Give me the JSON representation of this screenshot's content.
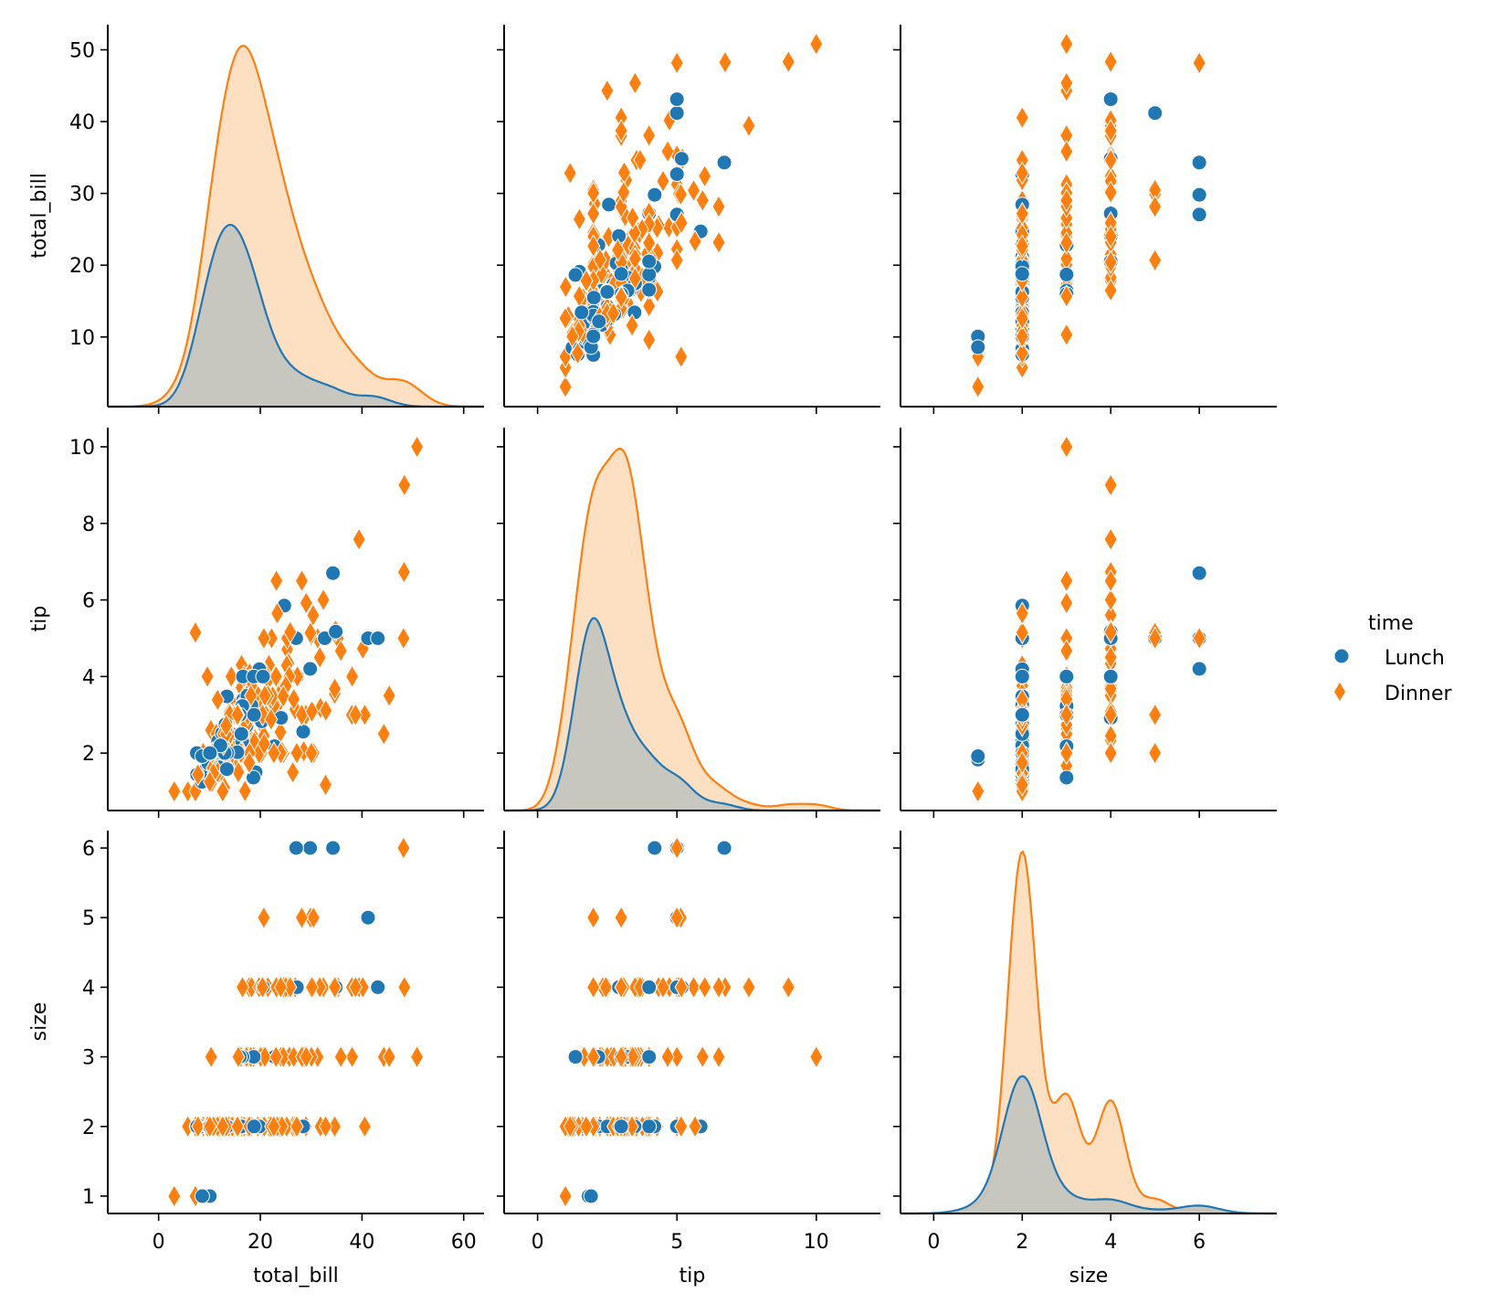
{
  "chart_data": {
    "type": "scatter",
    "title": "",
    "variables": [
      "total_bill",
      "tip",
      "size"
    ],
    "hue": "time",
    "legend": {
      "title": "time",
      "placement": "right",
      "entries": [
        {
          "label": "Lunch",
          "color": "#1f77b4",
          "marker": "circle"
        },
        {
          "label": "Dinner",
          "color": "#ff7f0e",
          "marker": "diamond"
        }
      ]
    },
    "axes": {
      "total_bill": {
        "label": "total_bill",
        "lim": [
          -10,
          64
        ],
        "ticks": [
          0,
          20,
          40,
          60
        ],
        "ticks_y": [
          10,
          20,
          30,
          40,
          50
        ],
        "lim_y": [
          0.3,
          53.5
        ]
      },
      "tip": {
        "label": "tip",
        "lim": [
          -1.2,
          12.3
        ],
        "ticks": [
          0,
          5,
          10
        ],
        "ticks_y": [
          2,
          4,
          6,
          8,
          10
        ],
        "lim_y": [
          0.5,
          10.5
        ]
      },
      "size": {
        "label": "size",
        "lim": [
          -0.75,
          7.75
        ],
        "ticks": [
          0,
          2,
          4,
          6
        ],
        "ticks_y": [
          1,
          2,
          3,
          4,
          5,
          6
        ],
        "lim_y": [
          0.75,
          6.25
        ]
      }
    },
    "grid": false,
    "diag_kind": "kde",
    "colors": {
      "Lunch": "#1f77b4",
      "Dinner": "#ff7f0e",
      "Lunch_fill": "#c4c4bf",
      "Dinner_fill": "#fddfc2"
    },
    "columns": [
      "total_bill",
      "tip",
      "size",
      "time"
    ],
    "rows": [
      [
        16.99,
        1.01,
        2,
        "Dinner"
      ],
      [
        10.34,
        1.66,
        3,
        "Dinner"
      ],
      [
        21.01,
        3.5,
        3,
        "Dinner"
      ],
      [
        23.68,
        3.31,
        2,
        "Dinner"
      ],
      [
        24.59,
        3.61,
        4,
        "Dinner"
      ],
      [
        25.29,
        4.71,
        4,
        "Dinner"
      ],
      [
        8.77,
        2.0,
        2,
        "Dinner"
      ],
      [
        26.88,
        3.12,
        4,
        "Dinner"
      ],
      [
        15.04,
        1.96,
        2,
        "Dinner"
      ],
      [
        14.78,
        3.23,
        2,
        "Dinner"
      ],
      [
        10.27,
        1.71,
        2,
        "Dinner"
      ],
      [
        35.26,
        5.0,
        4,
        "Dinner"
      ],
      [
        15.42,
        1.57,
        2,
        "Dinner"
      ],
      [
        18.43,
        3.0,
        4,
        "Dinner"
      ],
      [
        14.83,
        3.02,
        2,
        "Dinner"
      ],
      [
        21.58,
        3.92,
        2,
        "Dinner"
      ],
      [
        10.33,
        1.67,
        3,
        "Dinner"
      ],
      [
        16.29,
        3.71,
        3,
        "Dinner"
      ],
      [
        16.97,
        3.5,
        3,
        "Dinner"
      ],
      [
        20.65,
        3.35,
        3,
        "Dinner"
      ],
      [
        17.92,
        4.08,
        2,
        "Dinner"
      ],
      [
        20.29,
        2.75,
        2,
        "Dinner"
      ],
      [
        15.77,
        2.23,
        2,
        "Dinner"
      ],
      [
        39.42,
        7.58,
        4,
        "Dinner"
      ],
      [
        19.82,
        3.18,
        2,
        "Dinner"
      ],
      [
        17.81,
        2.34,
        4,
        "Dinner"
      ],
      [
        13.37,
        2.0,
        2,
        "Dinner"
      ],
      [
        12.69,
        2.0,
        2,
        "Dinner"
      ],
      [
        21.7,
        4.3,
        2,
        "Dinner"
      ],
      [
        19.65,
        3.0,
        2,
        "Dinner"
      ],
      [
        9.55,
        1.45,
        2,
        "Dinner"
      ],
      [
        18.35,
        2.5,
        4,
        "Dinner"
      ],
      [
        15.06,
        3.0,
        2,
        "Dinner"
      ],
      [
        20.69,
        2.45,
        4,
        "Dinner"
      ],
      [
        17.78,
        3.27,
        2,
        "Dinner"
      ],
      [
        24.06,
        3.6,
        3,
        "Dinner"
      ],
      [
        16.31,
        2.0,
        3,
        "Dinner"
      ],
      [
        16.93,
        3.07,
        3,
        "Dinner"
      ],
      [
        18.69,
        2.31,
        3,
        "Dinner"
      ],
      [
        31.27,
        5.0,
        3,
        "Dinner"
      ],
      [
        16.04,
        2.24,
        3,
        "Dinner"
      ],
      [
        17.46,
        2.54,
        2,
        "Dinner"
      ],
      [
        13.94,
        3.06,
        2,
        "Dinner"
      ],
      [
        9.68,
        1.32,
        2,
        "Dinner"
      ],
      [
        30.4,
        5.6,
        4,
        "Dinner"
      ],
      [
        18.29,
        3.0,
        2,
        "Dinner"
      ],
      [
        22.23,
        5.0,
        2,
        "Dinner"
      ],
      [
        32.4,
        6.0,
        4,
        "Dinner"
      ],
      [
        28.55,
        2.05,
        3,
        "Dinner"
      ],
      [
        18.04,
        3.0,
        2,
        "Dinner"
      ],
      [
        12.54,
        2.5,
        2,
        "Dinner"
      ],
      [
        10.29,
        2.6,
        2,
        "Dinner"
      ],
      [
        34.81,
        5.2,
        4,
        "Dinner"
      ],
      [
        9.94,
        1.56,
        2,
        "Dinner"
      ],
      [
        25.56,
        4.34,
        4,
        "Dinner"
      ],
      [
        19.49,
        3.51,
        2,
        "Dinner"
      ],
      [
        38.01,
        3.0,
        4,
        "Dinner"
      ],
      [
        26.41,
        1.5,
        2,
        "Dinner"
      ],
      [
        11.24,
        1.76,
        2,
        "Dinner"
      ],
      [
        48.27,
        6.73,
        4,
        "Dinner"
      ],
      [
        20.29,
        3.21,
        2,
        "Dinner"
      ],
      [
        13.81,
        2.0,
        2,
        "Dinner"
      ],
      [
        11.02,
        1.98,
        2,
        "Dinner"
      ],
      [
        18.29,
        3.76,
        4,
        "Dinner"
      ],
      [
        17.59,
        2.64,
        3,
        "Dinner"
      ],
      [
        20.08,
        3.15,
        3,
        "Dinner"
      ],
      [
        16.45,
        2.47,
        2,
        "Dinner"
      ],
      [
        3.07,
        1.0,
        1,
        "Dinner"
      ],
      [
        20.23,
        2.01,
        2,
        "Dinner"
      ],
      [
        15.01,
        2.09,
        2,
        "Dinner"
      ],
      [
        12.02,
        1.97,
        2,
        "Dinner"
      ],
      [
        17.07,
        3.0,
        3,
        "Dinner"
      ],
      [
        26.86,
        3.14,
        2,
        "Dinner"
      ],
      [
        25.28,
        5.0,
        2,
        "Dinner"
      ],
      [
        14.73,
        2.2,
        2,
        "Dinner"
      ],
      [
        10.51,
        1.25,
        2,
        "Dinner"
      ],
      [
        17.92,
        3.08,
        2,
        "Dinner"
      ],
      [
        27.2,
        4.0,
        4,
        "Lunch"
      ],
      [
        22.76,
        3.0,
        2,
        "Lunch"
      ],
      [
        17.29,
        2.71,
        2,
        "Lunch"
      ],
      [
        19.44,
        3.0,
        2,
        "Lunch"
      ],
      [
        16.66,
        3.4,
        2,
        "Lunch"
      ],
      [
        10.07,
        1.83,
        1,
        "Lunch"
      ],
      [
        32.68,
        5.0,
        2,
        "Lunch"
      ],
      [
        15.98,
        2.03,
        2,
        "Lunch"
      ],
      [
        34.83,
        5.17,
        4,
        "Lunch"
      ],
      [
        13.03,
        2.0,
        2,
        "Lunch"
      ],
      [
        18.28,
        4.0,
        2,
        "Lunch"
      ],
      [
        24.71,
        5.85,
        2,
        "Lunch"
      ],
      [
        21.16,
        3.0,
        2,
        "Lunch"
      ],
      [
        28.97,
        3.0,
        2,
        "Dinner"
      ],
      [
        22.49,
        3.5,
        2,
        "Dinner"
      ],
      [
        5.75,
        1.0,
        2,
        "Dinner"
      ],
      [
        16.32,
        4.3,
        2,
        "Dinner"
      ],
      [
        22.75,
        3.25,
        2,
        "Dinner"
      ],
      [
        40.17,
        4.73,
        4,
        "Dinner"
      ],
      [
        27.28,
        4.0,
        2,
        "Dinner"
      ],
      [
        12.03,
        1.5,
        2,
        "Dinner"
      ],
      [
        21.01,
        3.0,
        2,
        "Dinner"
      ],
      [
        12.46,
        1.5,
        2,
        "Dinner"
      ],
      [
        11.35,
        2.5,
        2,
        "Dinner"
      ],
      [
        15.38,
        3.0,
        2,
        "Dinner"
      ],
      [
        44.3,
        2.5,
        3,
        "Dinner"
      ],
      [
        22.42,
        3.48,
        2,
        "Dinner"
      ],
      [
        20.92,
        4.08,
        2,
        "Dinner"
      ],
      [
        15.36,
        1.64,
        2,
        "Dinner"
      ],
      [
        20.49,
        4.06,
        2,
        "Dinner"
      ],
      [
        25.21,
        4.29,
        2,
        "Dinner"
      ],
      [
        18.24,
        3.76,
        2,
        "Dinner"
      ],
      [
        14.31,
        4.0,
        2,
        "Dinner"
      ],
      [
        14.0,
        3.0,
        2,
        "Dinner"
      ],
      [
        7.25,
        1.0,
        1,
        "Dinner"
      ],
      [
        38.07,
        4.0,
        3,
        "Dinner"
      ],
      [
        23.95,
        2.55,
        2,
        "Dinner"
      ],
      [
        25.71,
        4.0,
        3,
        "Dinner"
      ],
      [
        17.31,
        3.5,
        2,
        "Dinner"
      ],
      [
        29.93,
        5.07,
        4,
        "Dinner"
      ],
      [
        10.65,
        1.5,
        2,
        "Lunch"
      ],
      [
        12.43,
        1.8,
        2,
        "Lunch"
      ],
      [
        24.08,
        2.92,
        4,
        "Lunch"
      ],
      [
        11.69,
        2.31,
        2,
        "Lunch"
      ],
      [
        13.42,
        1.68,
        2,
        "Lunch"
      ],
      [
        14.26,
        2.5,
        2,
        "Lunch"
      ],
      [
        15.95,
        2.0,
        2,
        "Lunch"
      ],
      [
        12.48,
        2.52,
        2,
        "Lunch"
      ],
      [
        29.8,
        4.2,
        6,
        "Lunch"
      ],
      [
        8.52,
        1.48,
        2,
        "Lunch"
      ],
      [
        14.52,
        2.0,
        2,
        "Lunch"
      ],
      [
        11.38,
        2.0,
        2,
        "Lunch"
      ],
      [
        22.82,
        2.18,
        3,
        "Lunch"
      ],
      [
        19.08,
        1.5,
        2,
        "Lunch"
      ],
      [
        20.27,
        2.83,
        2,
        "Lunch"
      ],
      [
        11.17,
        1.5,
        2,
        "Lunch"
      ],
      [
        12.26,
        2.0,
        2,
        "Lunch"
      ],
      [
        18.26,
        3.25,
        2,
        "Lunch"
      ],
      [
        8.51,
        1.25,
        2,
        "Lunch"
      ],
      [
        10.33,
        2.0,
        2,
        "Lunch"
      ],
      [
        14.15,
        2.0,
        2,
        "Lunch"
      ],
      [
        16.0,
        2.0,
        2,
        "Lunch"
      ],
      [
        13.16,
        2.75,
        2,
        "Lunch"
      ],
      [
        17.47,
        3.5,
        2,
        "Lunch"
      ],
      [
        34.3,
        6.7,
        6,
        "Lunch"
      ],
      [
        41.19,
        5.0,
        5,
        "Lunch"
      ],
      [
        27.05,
        5.0,
        6,
        "Lunch"
      ],
      [
        16.43,
        2.3,
        2,
        "Lunch"
      ],
      [
        8.35,
        1.5,
        2,
        "Lunch"
      ],
      [
        18.64,
        1.36,
        3,
        "Lunch"
      ],
      [
        11.87,
        1.63,
        2,
        "Lunch"
      ],
      [
        9.78,
        1.73,
        2,
        "Lunch"
      ],
      [
        7.51,
        2.0,
        2,
        "Lunch"
      ],
      [
        14.07,
        2.5,
        2,
        "Dinner"
      ],
      [
        13.13,
        2.0,
        2,
        "Dinner"
      ],
      [
        17.26,
        2.74,
        3,
        "Dinner"
      ],
      [
        24.55,
        2.0,
        4,
        "Dinner"
      ],
      [
        19.77,
        2.0,
        4,
        "Dinner"
      ],
      [
        29.85,
        5.14,
        5,
        "Dinner"
      ],
      [
        48.17,
        5.0,
        6,
        "Dinner"
      ],
      [
        25.0,
        3.75,
        4,
        "Dinner"
      ],
      [
        13.39,
        2.61,
        2,
        "Dinner"
      ],
      [
        16.49,
        2.0,
        4,
        "Dinner"
      ],
      [
        21.5,
        3.5,
        4,
        "Dinner"
      ],
      [
        12.66,
        2.5,
        2,
        "Dinner"
      ],
      [
        16.21,
        2.0,
        3,
        "Dinner"
      ],
      [
        13.81,
        2.0,
        2,
        "Dinner"
      ],
      [
        17.51,
        3.0,
        2,
        "Dinner"
      ],
      [
        24.52,
        3.48,
        3,
        "Dinner"
      ],
      [
        20.76,
        2.24,
        2,
        "Dinner"
      ],
      [
        31.71,
        4.5,
        4,
        "Dinner"
      ],
      [
        10.59,
        1.61,
        2,
        "Dinner"
      ],
      [
        10.63,
        2.0,
        2,
        "Dinner"
      ],
      [
        50.81,
        10.0,
        3,
        "Dinner"
      ],
      [
        15.81,
        3.16,
        2,
        "Dinner"
      ],
      [
        7.25,
        5.15,
        2,
        "Dinner"
      ],
      [
        31.85,
        3.18,
        2,
        "Dinner"
      ],
      [
        16.82,
        4.0,
        2,
        "Dinner"
      ],
      [
        32.9,
        3.11,
        2,
        "Dinner"
      ],
      [
        17.89,
        2.0,
        2,
        "Dinner"
      ],
      [
        14.48,
        2.0,
        2,
        "Dinner"
      ],
      [
        9.6,
        4.0,
        2,
        "Dinner"
      ],
      [
        34.63,
        3.55,
        2,
        "Dinner"
      ],
      [
        34.65,
        3.68,
        4,
        "Dinner"
      ],
      [
        23.33,
        5.65,
        2,
        "Dinner"
      ],
      [
        45.35,
        3.5,
        3,
        "Dinner"
      ],
      [
        23.17,
        6.5,
        4,
        "Dinner"
      ],
      [
        40.55,
        3.0,
        2,
        "Dinner"
      ],
      [
        20.69,
        5.0,
        5,
        "Dinner"
      ],
      [
        20.9,
        3.5,
        3,
        "Dinner"
      ],
      [
        30.46,
        2.0,
        5,
        "Dinner"
      ],
      [
        18.15,
        3.5,
        3,
        "Dinner"
      ],
      [
        23.1,
        4.0,
        3,
        "Dinner"
      ],
      [
        15.69,
        1.5,
        2,
        "Dinner"
      ],
      [
        19.81,
        4.19,
        2,
        "Lunch"
      ],
      [
        28.44,
        2.56,
        2,
        "Lunch"
      ],
      [
        15.48,
        2.02,
        2,
        "Lunch"
      ],
      [
        16.58,
        4.0,
        2,
        "Lunch"
      ],
      [
        7.56,
        1.44,
        2,
        "Lunch"
      ],
      [
        10.34,
        2.0,
        2,
        "Lunch"
      ],
      [
        43.11,
        5.0,
        4,
        "Lunch"
      ],
      [
        13.0,
        2.0,
        2,
        "Lunch"
      ],
      [
        13.51,
        2.0,
        2,
        "Lunch"
      ],
      [
        18.71,
        4.0,
        3,
        "Lunch"
      ],
      [
        12.74,
        2.01,
        2,
        "Lunch"
      ],
      [
        13.0,
        2.0,
        2,
        "Lunch"
      ],
      [
        16.4,
        2.5,
        2,
        "Lunch"
      ],
      [
        20.53,
        4.0,
        4,
        "Lunch"
      ],
      [
        16.47,
        3.23,
        3,
        "Lunch"
      ],
      [
        26.59,
        3.41,
        3,
        "Dinner"
      ],
      [
        38.73,
        3.0,
        4,
        "Dinner"
      ],
      [
        24.27,
        2.03,
        2,
        "Dinner"
      ],
      [
        12.76,
        2.23,
        2,
        "Dinner"
      ],
      [
        30.06,
        2.0,
        3,
        "Dinner"
      ],
      [
        25.89,
        5.16,
        4,
        "Dinner"
      ],
      [
        48.33,
        9.0,
        4,
        "Dinner"
      ],
      [
        13.27,
        2.5,
        2,
        "Dinner"
      ],
      [
        28.17,
        6.5,
        3,
        "Dinner"
      ],
      [
        12.9,
        1.1,
        2,
        "Dinner"
      ],
      [
        28.15,
        3.0,
        5,
        "Dinner"
      ],
      [
        11.59,
        1.5,
        2,
        "Dinner"
      ],
      [
        7.74,
        1.44,
        2,
        "Dinner"
      ],
      [
        30.14,
        3.09,
        4,
        "Dinner"
      ],
      [
        12.16,
        2.2,
        2,
        "Lunch"
      ],
      [
        13.42,
        3.48,
        2,
        "Lunch"
      ],
      [
        8.58,
        1.92,
        1,
        "Lunch"
      ],
      [
        15.98,
        3.0,
        3,
        "Lunch"
      ],
      [
        13.42,
        1.58,
        2,
        "Lunch"
      ],
      [
        16.27,
        2.5,
        2,
        "Lunch"
      ],
      [
        10.09,
        2.0,
        2,
        "Lunch"
      ],
      [
        20.45,
        3.0,
        4,
        "Dinner"
      ],
      [
        13.28,
        2.72,
        2,
        "Dinner"
      ],
      [
        22.12,
        2.88,
        2,
        "Dinner"
      ],
      [
        24.01,
        2.0,
        4,
        "Dinner"
      ],
      [
        15.69,
        3.0,
        3,
        "Dinner"
      ],
      [
        11.61,
        3.39,
        2,
        "Dinner"
      ],
      [
        10.77,
        1.47,
        2,
        "Dinner"
      ],
      [
        15.53,
        3.0,
        2,
        "Dinner"
      ],
      [
        10.07,
        1.25,
        2,
        "Dinner"
      ],
      [
        12.6,
        1.0,
        2,
        "Dinner"
      ],
      [
        32.83,
        1.17,
        2,
        "Dinner"
      ],
      [
        35.83,
        4.67,
        3,
        "Dinner"
      ],
      [
        29.03,
        5.92,
        3,
        "Dinner"
      ],
      [
        27.18,
        2.0,
        2,
        "Dinner"
      ],
      [
        22.67,
        2.0,
        2,
        "Dinner"
      ],
      [
        17.82,
        1.75,
        2,
        "Dinner"
      ],
      [
        18.78,
        3.0,
        2,
        "Lunch"
      ]
    ]
  }
}
